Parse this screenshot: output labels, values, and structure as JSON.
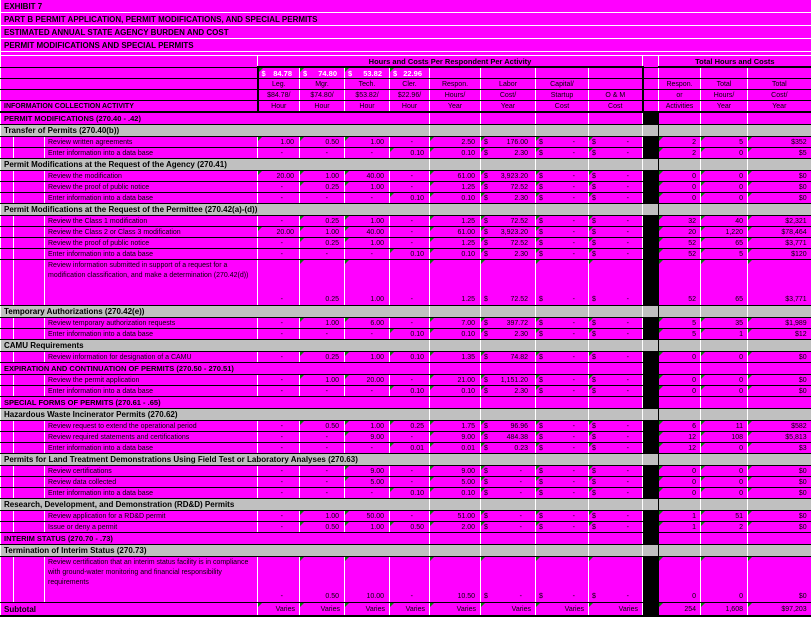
{
  "colors": {
    "background": "#FF00FF",
    "section_header": "#C0C0C0",
    "comment_marker_green": "#0C7A0C",
    "page_break_blue": "#2B2BB8",
    "grid_white": "#FFFFFF",
    "grid_black": "#000000"
  },
  "title_block": {
    "line1": "EXHIBIT 7",
    "line2": "PART B PERMIT APPLICATION, PERMIT MODIFICATIONS, AND SPECIAL PERMITS",
    "line3": "ESTIMATED ANNUAL STATE AGENCY BURDEN AND COST",
    "line4": "PERMIT MODIFICATIONS AND SPECIAL PERMITS"
  },
  "header": {
    "group_left": "Hours and Costs Per Respondent Per Activity",
    "group_right": "Total Hours and Costs",
    "currency": "$",
    "rates": [
      "84.78",
      "74.80",
      "53.82",
      "22.96"
    ],
    "info_label": "INFORMATION COLLECTION ACTIVITY",
    "columns": [
      {
        "l1": "Leg.",
        "l2": "$84.78/",
        "l3": "Hour"
      },
      {
        "l1": "Mgr.",
        "l2": "$74.80/",
        "l3": "Hour"
      },
      {
        "l1": "Tech.",
        "l2": "$53.82/",
        "l3": "Hour"
      },
      {
        "l1": "Cler.",
        "l2": "$22.96/",
        "l3": "Hour"
      },
      {
        "l1": "Respon.",
        "l2": "Hours/",
        "l3": "Year"
      },
      {
        "l1": "Labor",
        "l2": "Cost/",
        "l3": "Year"
      },
      {
        "l1": "Capital/",
        "l2": "Startup",
        "l3": "Cost"
      },
      {
        "l1": "",
        "l2": "O & M",
        "l3": "Cost"
      },
      {
        "l1": "Respon.",
        "l2": "or",
        "l3": "Activities"
      },
      {
        "l1": "Total",
        "l2": "Hours/",
        "l3": "Year"
      },
      {
        "l1": "Total",
        "l2": "Cost/",
        "l3": "Year"
      }
    ]
  },
  "rows": [
    {
      "t": "caps",
      "label": "PERMIT MODIFICATIONS (270.40 - .42)"
    },
    {
      "t": "sec",
      "label": "Transfer of Permits (270.40(b))"
    },
    {
      "t": "d",
      "label": "Review written agreements",
      "v": {
        "leg": "1.00",
        "mgr": "0.50",
        "tech": "1.00",
        "cler": "-",
        "hrs": "2.50",
        "labor": "176.00",
        "cap": "-",
        "om": "-",
        "resp": "2",
        "thrs": "5",
        "tcost": "$352"
      }
    },
    {
      "t": "d",
      "label": "Enter information into a data base",
      "v": {
        "leg": "-",
        "mgr": "-",
        "tech": "-",
        "cler": "0.10",
        "hrs": "0.10",
        "labor": "2.30",
        "cap": "-",
        "om": "-",
        "resp": "2",
        "thrs": "0",
        "tcost": "$5"
      }
    },
    {
      "t": "sec",
      "label": "Permit Modifications at the Request of the Agency (270.41)"
    },
    {
      "t": "d",
      "label": "Review the modification",
      "v": {
        "leg": "20.00",
        "mgr": "1.00",
        "tech": "40.00",
        "cler": "-",
        "hrs": "61.00",
        "labor": "3,923.20",
        "cap": "-",
        "om": "-",
        "resp": "0",
        "thrs": "0",
        "tcost": "$0"
      }
    },
    {
      "t": "d",
      "label": "Review the proof of public notice",
      "v": {
        "leg": "-",
        "mgr": "0.25",
        "tech": "1.00",
        "cler": "-",
        "hrs": "1.25",
        "labor": "72.52",
        "cap": "-",
        "om": "-",
        "resp": "0",
        "thrs": "0",
        "tcost": "$0"
      }
    },
    {
      "t": "d",
      "label": "Enter information into a data base",
      "v": {
        "leg": "-",
        "mgr": "-",
        "tech": "-",
        "cler": "0.10",
        "hrs": "0.10",
        "labor": "2.30",
        "cap": "-",
        "om": "-",
        "resp": "0",
        "thrs": "0",
        "tcost": "$0"
      }
    },
    {
      "t": "sec",
      "label": "Permit Modifications at the Request of the Permittee  (270.42(a)-(d))"
    },
    {
      "t": "d",
      "label": "Review the Class 1 modification",
      "v": {
        "leg": "-",
        "mgr": "0.25",
        "tech": "1.00",
        "cler": "-",
        "hrs": "1.25",
        "labor": "72.52",
        "cap": "-",
        "om": "-",
        "resp": "32",
        "thrs": "40",
        "tcost": "$2,321"
      }
    },
    {
      "t": "d",
      "label": "Review the Class 2 or Class 3 modification",
      "v": {
        "leg": "20.00",
        "mgr": "1.00",
        "tech": "40.00",
        "cler": "-",
        "hrs": "61.00",
        "labor": "3,923.20",
        "cap": "-",
        "om": "-",
        "resp": "20",
        "thrs": "1,220",
        "tcost": "$78,464"
      }
    },
    {
      "t": "d",
      "label": "Review the proof of public notice",
      "v": {
        "leg": "-",
        "mgr": "0.25",
        "tech": "1.00",
        "cler": "-",
        "hrs": "1.25",
        "labor": "72.52",
        "cap": "-",
        "om": "-",
        "resp": "52",
        "thrs": "65",
        "tcost": "$3,771"
      }
    },
    {
      "t": "d",
      "label": "Enter information into a data base",
      "v": {
        "leg": "-",
        "mgr": "-",
        "tech": "-",
        "cler": "0.10",
        "hrs": "0.10",
        "labor": "2.30",
        "cap": "-",
        "om": "-",
        "resp": "52",
        "thrs": "5",
        "tcost": "$120"
      }
    },
    {
      "t": "d",
      "tall": true,
      "label": "Review information submitted in support of a request for a modification classification, and make a determination (270.42(d))",
      "v": {
        "leg": "-",
        "mgr": "0.25",
        "tech": "1.00",
        "cler": "-",
        "hrs": "1.25",
        "labor": "72.52",
        "cap": "-",
        "om": "-",
        "resp": "52",
        "thrs": "65",
        "tcost": "$3,771"
      }
    },
    {
      "t": "sec",
      "label": "Temporary Authorizations (270.42(e))"
    },
    {
      "t": "d",
      "label": "Review temporary authorization requests",
      "v": {
        "leg": "-",
        "mgr": "1.00",
        "tech": "6.00",
        "cler": "-",
        "hrs": "7.00",
        "labor": "397.72",
        "cap": "-",
        "om": "-",
        "resp": "5",
        "thrs": "35",
        "tcost": "$1,989"
      }
    },
    {
      "t": "d",
      "label": "Enter information into a data base",
      "v": {
        "leg": "-",
        "mgr": "-",
        "tech": "-",
        "cler": "0.10",
        "hrs": "0.10",
        "labor": "2.30",
        "cap": "-",
        "om": "-",
        "resp": "5",
        "thrs": "1",
        "tcost": "$12"
      }
    },
    {
      "t": "sec",
      "label": "CAMU Requirements"
    },
    {
      "t": "d",
      "label": "Review information for designation of a CAMU",
      "v": {
        "leg": "-",
        "mgr": "0.25",
        "tech": "1.00",
        "cler": "0.10",
        "hrs": "1.35",
        "labor": "74.82",
        "cap": "-",
        "om": "-",
        "resp": "0",
        "thrs": "0",
        "tcost": "$0"
      }
    },
    {
      "t": "caps",
      "label": "EXPIRATION AND CONTINUATION OF PERMITS (270.50 - 270.51)"
    },
    {
      "t": "d",
      "label": "Review the permit application",
      "v": {
        "leg": "-",
        "mgr": "1.00",
        "tech": "20.00",
        "cler": "-",
        "hrs": "21.00",
        "labor": "1,151.20",
        "cap": "-",
        "om": "-",
        "resp": "0",
        "thrs": "0",
        "tcost": "$0"
      }
    },
    {
      "t": "d",
      "label": "Enter information into a data base",
      "v": {
        "leg": "-",
        "mgr": "-",
        "tech": "-",
        "cler": "0.10",
        "hrs": "0.10",
        "labor": "2.30",
        "cap": "-",
        "om": "-",
        "resp": "0",
        "thrs": "0",
        "tcost": "$0"
      }
    },
    {
      "t": "caps",
      "label": "SPECIAL FORMS OF PERMITS (270.61 - .65)"
    },
    {
      "t": "sec",
      "label": "Hazardous Waste Incinerator Permits (270.62)"
    },
    {
      "t": "d",
      "label": "Review request to extend the operational period",
      "v": {
        "leg": "-",
        "mgr": "0.50",
        "tech": "1.00",
        "cler": "0.25",
        "hrs": "1.75",
        "labor": "96.96",
        "cap": "-",
        "om": "-",
        "resp": "6",
        "thrs": "11",
        "tcost": "$582"
      }
    },
    {
      "t": "d",
      "label": "Review required statements and certifications",
      "v": {
        "leg": "-",
        "mgr": "-",
        "tech": "9.00",
        "cler": "-",
        "hrs": "9.00",
        "labor": "484.38",
        "cap": "-",
        "om": "-",
        "resp": "12",
        "thrs": "108",
        "tcost": "$5,813"
      }
    },
    {
      "t": "d",
      "label": "Enter information into a data base",
      "v": {
        "leg": "-",
        "mgr": "-",
        "tech": "-",
        "cler": "0.01",
        "hrs": "0.01",
        "labor": "0.23",
        "cap": "-",
        "om": "-",
        "resp": "12",
        "thrs": "0",
        "tcost": "$3"
      }
    },
    {
      "t": "sec",
      "label": "Permits for Land Treatment Demonstrations Using Field Test or Laboratory Analyses  (270.63)"
    },
    {
      "t": "d",
      "label": "Review certifications",
      "v": {
        "leg": "-",
        "mgr": "-",
        "tech": "9.00",
        "cler": "-",
        "hrs": "9.00",
        "labor": "-",
        "cap": "-",
        "om": "-",
        "resp": "0",
        "thrs": "0",
        "tcost": "$0"
      }
    },
    {
      "t": "d",
      "label": "Review data collected",
      "v": {
        "leg": "-",
        "mgr": "-",
        "tech": "5.00",
        "cler": "-",
        "hrs": "5.00",
        "labor": "-",
        "cap": "-",
        "om": "-",
        "resp": "0",
        "thrs": "0",
        "tcost": "$0"
      }
    },
    {
      "t": "d",
      "label": "Enter information into a data base",
      "v": {
        "leg": "-",
        "mgr": "-",
        "tech": "-",
        "cler": "0.10",
        "hrs": "0.10",
        "labor": "-",
        "cap": "-",
        "om": "-",
        "resp": "0",
        "thrs": "0",
        "tcost": "$0"
      }
    },
    {
      "t": "sec",
      "label": "Research, Development, and Demonstration (RD&D) Permits"
    },
    {
      "t": "d",
      "label": "Review application for a RD&D permit",
      "v": {
        "leg": "-",
        "mgr": "1.00",
        "tech": "50.00",
        "cler": "-",
        "hrs": "51.00",
        "labor": "-",
        "cap": "-",
        "om": "-",
        "resp": "1",
        "thrs": "51",
        "tcost": "$0"
      }
    },
    {
      "t": "d",
      "label": "Issue or deny a permit",
      "v": {
        "leg": "-",
        "mgr": "0.50",
        "tech": "1.00",
        "cler": "0.50",
        "hrs": "2.00",
        "labor": "-",
        "cap": "-",
        "om": "-",
        "resp": "1",
        "thrs": "2",
        "tcost": "$0"
      }
    },
    {
      "t": "caps",
      "label": "INTERIM STATUS (270.70 - .73)"
    },
    {
      "t": "sec",
      "label": "Termination of Interim Status (270.73)"
    },
    {
      "t": "d",
      "tall": true,
      "label": "Review certification that an interim status facility is  in compliance with ground-water monitoring  and financial responsibility requirements",
      "v": {
        "leg": "-",
        "mgr": "0.50",
        "tech": "10.00",
        "cler": "-",
        "hrs": "10.50",
        "labor": "-",
        "cap": "-",
        "om": "-",
        "resp": "0",
        "thrs": "0",
        "tcost": "$0"
      }
    },
    {
      "t": "sub",
      "label": "Subtotal",
      "v": {
        "leg": "Varies",
        "mgr": "Varies",
        "tech": "Varies",
        "cler": "Varies",
        "hrs": "Varies",
        "labor": "Varies",
        "cap": "Varies",
        "om": "Varies",
        "resp": "254",
        "thrs": "1,608",
        "tcost": "$97,203"
      }
    }
  ]
}
